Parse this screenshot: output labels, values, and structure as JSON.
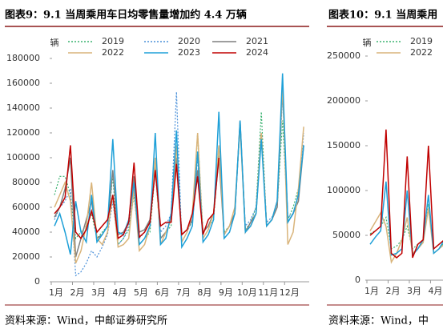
{
  "chart_data": [
    {
      "type": "line",
      "title": "图表9：9.1 当周乘用车日均零售量增加约 4.4 万辆",
      "y_label": "辆",
      "categories": [
        "1月",
        null,
        null,
        null,
        "2月",
        null,
        null,
        null,
        "3月",
        null,
        null,
        null,
        "4月",
        null,
        null,
        null,
        "5月",
        null,
        null,
        null,
        "6月",
        null,
        null,
        null,
        "7月",
        null,
        null,
        null,
        "8月",
        null,
        null,
        null,
        "9月",
        null,
        null,
        null,
        "10月",
        null,
        null,
        null,
        "11月",
        null,
        null,
        null,
        "12月",
        null,
        null,
        null
      ],
      "ylim": [
        0,
        180000
      ],
      "yticks": [
        0,
        20000,
        40000,
        60000,
        80000,
        100000,
        120000,
        140000,
        160000,
        180000
      ],
      "series": [
        {
          "name": "2019",
          "color": "#3cb371",
          "dash": "2,2",
          "values": [
            70000,
            85000,
            85000,
            70000,
            35000,
            40000,
            45000,
            55000,
            35000,
            40000,
            45000,
            85000,
            30000,
            35000,
            42000,
            70000,
            30000,
            35000,
            40000,
            90000,
            35000,
            40000,
            45000,
            110000,
            38000,
            42000,
            48000,
            120000,
            40000,
            45000,
            50000,
            105000,
            40000,
            45000,
            55000,
            130000,
            42000,
            48000,
            60000,
            137000,
            45000,
            50000,
            60000,
            130000,
            50000,
            60000,
            75000,
            110000
          ]
        },
        {
          "name": "2020",
          "color": "#4a90d9",
          "dash": "2,2",
          "values": [
            50000,
            60000,
            65000,
            75000,
            5000,
            8000,
            15000,
            25000,
            20000,
            28000,
            38000,
            65000,
            30000,
            35000,
            45000,
            80000,
            35000,
            40000,
            50000,
            90000,
            40000,
            45000,
            55000,
            153000,
            32000,
            40000,
            50000,
            100000,
            40000,
            45000,
            55000,
            110000,
            38000,
            45000,
            55000,
            125000,
            45000,
            50000,
            60000,
            115000,
            48000,
            52000,
            60000,
            150000,
            52000,
            55000,
            65000,
            120000
          ]
        },
        {
          "name": "2021",
          "color": "#7f7f7f",
          "values": [
            52000,
            60000,
            75000,
            100000,
            20000,
            35000,
            50000,
            65000,
            35000,
            38000,
            45000,
            90000,
            38000,
            40000,
            48000,
            85000,
            40000,
            42000,
            50000,
            95000,
            35000,
            40000,
            50000,
            100000,
            38000,
            42000,
            50000,
            90000,
            40000,
            45000,
            55000,
            100000,
            38000,
            45000,
            55000,
            130000,
            40000,
            48000,
            55000,
            120000,
            45000,
            50000,
            60000,
            158000,
            48000,
            55000,
            65000,
            110000
          ]
        },
        {
          "name": "2022",
          "color": "#d9b47a",
          "values": [
            60000,
            70000,
            80000,
            65000,
            15000,
            25000,
            45000,
            80000,
            35000,
            30000,
            40000,
            70000,
            28000,
            30000,
            35000,
            75000,
            25000,
            30000,
            45000,
            100000,
            30000,
            40000,
            50000,
            110000,
            32000,
            40000,
            55000,
            120000,
            35000,
            42000,
            55000,
            110000,
            38000,
            45000,
            60000,
            125000,
            40000,
            45000,
            55000,
            120000,
            45000,
            50000,
            65000,
            160000,
            30000,
            40000,
            75000,
            125000
          ]
        },
        {
          "name": "2023",
          "color": "#1ea0d8",
          "values": [
            45000,
            55000,
            40000,
            22000,
            65000,
            40000,
            32000,
            70000,
            32000,
            38000,
            45000,
            115000,
            40000,
            38000,
            50000,
            80000,
            30000,
            35000,
            45000,
            120000,
            30000,
            35000,
            55000,
            122000,
            28000,
            35000,
            45000,
            105000,
            32000,
            38000,
            50000,
            137000,
            35000,
            40000,
            55000,
            130000,
            40000,
            45000,
            55000,
            115000,
            45000,
            50000,
            65000,
            168000,
            48000,
            55000,
            70000,
            110000
          ]
        },
        {
          "name": "2024",
          "color": "#c00000",
          "values": [
            55000,
            60000,
            68000,
            110000,
            40000,
            35000,
            42000,
            57000,
            40000,
            45000,
            50000,
            70000,
            35000,
            38000,
            48000,
            96000,
            36000,
            40000,
            48000,
            90000,
            45000,
            48000,
            48000,
            95000,
            38000,
            42000,
            55000,
            85000,
            38000,
            50000,
            55000,
            100000,
            null,
            null,
            null,
            null,
            null,
            null,
            null,
            null,
            null,
            null,
            null,
            null,
            null,
            null,
            null,
            null
          ]
        }
      ]
    },
    {
      "type": "line",
      "title": "图表10：9.1 当周乘用",
      "y_label": "辆",
      "categories": [
        "1月",
        null,
        null,
        null,
        "2月",
        null,
        null,
        null,
        "3月",
        null,
        null,
        null,
        "4月",
        null,
        null,
        null
      ],
      "ylim": [
        0,
        250000
      ],
      "yticks": [
        0,
        50000,
        100000,
        150000,
        200000,
        250000
      ],
      "series": [
        {
          "name": "2019",
          "color": "#3cb371",
          "dash": "2,2",
          "values": [
            52000,
            55000,
            60000,
            70000,
            35000,
            38000,
            45000,
            60000,
            35000,
            40000,
            45000,
            85000,
            30000,
            35000,
            42000,
            60000
          ]
        },
        {
          "name": "2022",
          "color": "#d9b47a",
          "values": [
            55000,
            65000,
            75000,
            60000,
            20000,
            30000,
            45000,
            70000,
            30000,
            35000,
            42000,
            80000,
            30000,
            35000,
            40000,
            55000
          ]
        },
        {
          "color": "#1ea0d8",
          "values": [
            40000,
            48000,
            55000,
            110000,
            28000,
            30000,
            35000,
            100000,
            28000,
            35000,
            45000,
            95000,
            30000,
            35000,
            45000,
            60000
          ]
        },
        {
          "color": "#c00000",
          "values": [
            50000,
            55000,
            60000,
            168000,
            30000,
            25000,
            30000,
            138000,
            25000,
            40000,
            45000,
            150000,
            35000,
            40000,
            45000,
            60000
          ]
        }
      ]
    }
  ],
  "sources": [
    "资料来源：Wind，中邮证券研究所",
    "资料来源：Wind，中"
  ]
}
